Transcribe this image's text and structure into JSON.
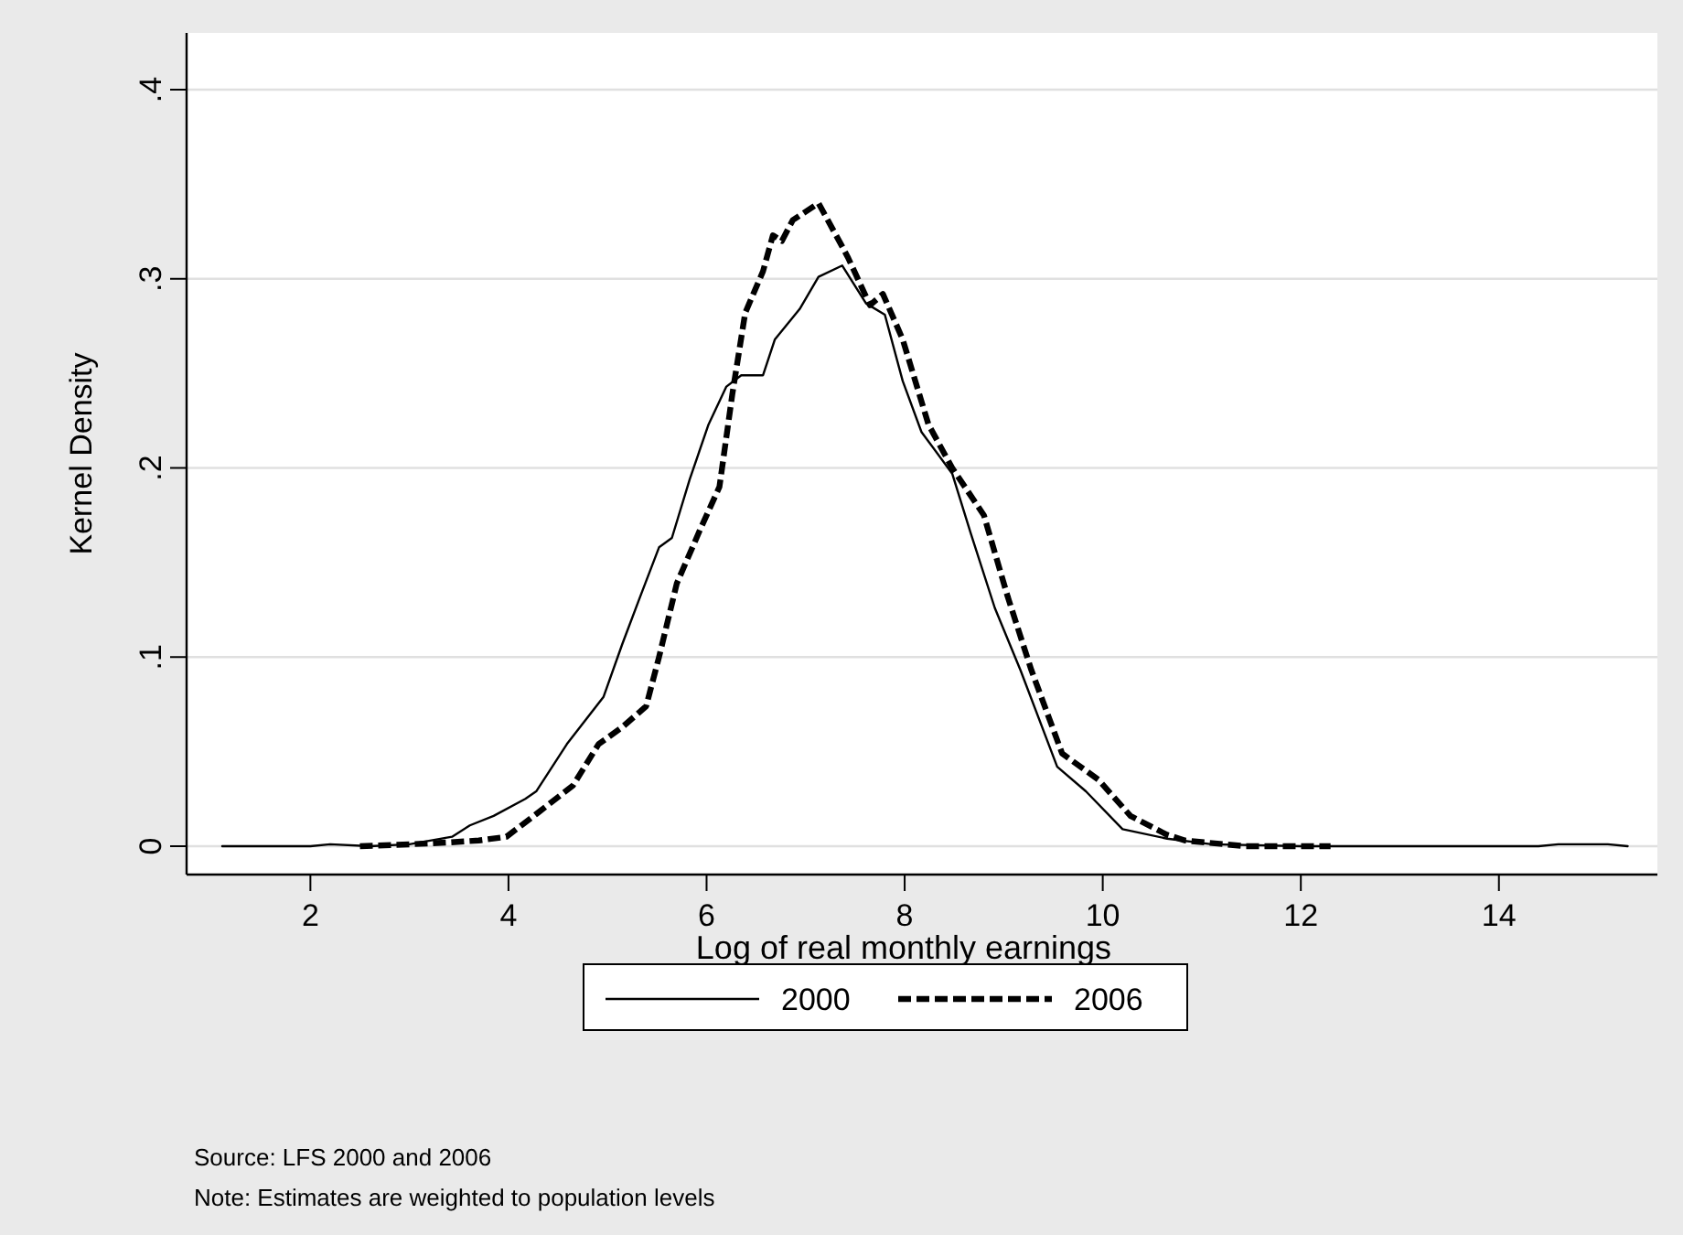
{
  "chart_data": {
    "type": "line",
    "xlabel": "Log of real monthly earnings",
    "ylabel": "Kernel Density",
    "xlim": [
      0.75,
      15.6
    ],
    "ylim": [
      -0.015,
      0.43
    ],
    "xticks": [
      2,
      4,
      6,
      8,
      10,
      12,
      14
    ],
    "yticks": [
      {
        "value": 0,
        "label": "0"
      },
      {
        "value": 0.1,
        "label": ".1"
      },
      {
        "value": 0.2,
        "label": ".2"
      },
      {
        "value": 0.3,
        "label": ".3"
      },
      {
        "value": 0.4,
        "label": ".4"
      }
    ],
    "grid": "y",
    "legend": "bottom",
    "annotations": [
      "Source: LFS 2000 and 2006",
      "Note: Estimates are weighted to population levels"
    ],
    "series": [
      {
        "name": "2000",
        "color": "#000000",
        "line_style": "solid",
        "x": [
          1.11,
          2.0,
          2.2,
          2.6,
          3.0,
          3.43,
          3.61,
          3.85,
          4.17,
          4.28,
          4.59,
          4.96,
          5.15,
          5.33,
          5.52,
          5.65,
          5.83,
          6.02,
          6.2,
          6.35,
          6.57,
          6.69,
          6.94,
          7.13,
          7.37,
          7.61,
          7.8,
          7.98,
          8.17,
          8.48,
          8.67,
          8.91,
          9.17,
          9.54,
          9.83,
          10.2,
          10.65,
          11.1,
          12.0,
          14.4,
          14.6,
          15.1,
          15.3
        ],
        "values": [
          0,
          0,
          0.001,
          0,
          0.001,
          0.005,
          0.011,
          0.016,
          0.025,
          0.029,
          0.054,
          0.079,
          0.107,
          0.132,
          0.158,
          0.163,
          0.194,
          0.223,
          0.243,
          0.249,
          0.249,
          0.268,
          0.284,
          0.301,
          0.307,
          0.287,
          0.281,
          0.246,
          0.219,
          0.197,
          0.165,
          0.126,
          0.093,
          0.042,
          0.029,
          0.009,
          0.004,
          0.001,
          0,
          0,
          0.001,
          0.001,
          0
        ]
      },
      {
        "name": "2006",
        "color": "#000000",
        "line_style": "dashed",
        "x": [
          2.5,
          3.0,
          3.4,
          3.7,
          3.98,
          4.28,
          4.65,
          4.91,
          5.15,
          5.39,
          5.52,
          5.7,
          5.94,
          6.13,
          6.26,
          6.39,
          6.57,
          6.67,
          6.76,
          6.87,
          7.13,
          7.37,
          7.43,
          7.65,
          7.78,
          7.98,
          8.24,
          8.48,
          8.8,
          9.04,
          9.28,
          9.59,
          9.96,
          10.28,
          10.65,
          10.83,
          11.44,
          12.3
        ],
        "values": [
          0,
          0.001,
          0.002,
          0.003,
          0.005,
          0.017,
          0.032,
          0.054,
          0.063,
          0.074,
          0.1,
          0.139,
          0.168,
          0.19,
          0.239,
          0.282,
          0.304,
          0.323,
          0.32,
          0.331,
          0.34,
          0.317,
          0.311,
          0.286,
          0.292,
          0.268,
          0.223,
          0.2,
          0.175,
          0.132,
          0.093,
          0.049,
          0.035,
          0.016,
          0.006,
          0.003,
          0,
          0
        ]
      }
    ]
  }
}
